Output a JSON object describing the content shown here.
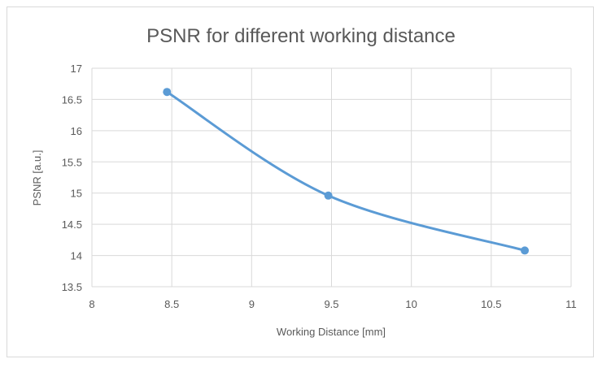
{
  "chart_data": {
    "type": "line",
    "title": "PSNR for different working distance",
    "xlabel": "Working Distance [mm]",
    "ylabel": "PSNR [a.u.]",
    "xlim": [
      8,
      11
    ],
    "ylim": [
      13.5,
      17
    ],
    "x_ticks": [
      "8",
      "8.5",
      "9",
      "9.5",
      "10",
      "10.5",
      "11"
    ],
    "y_ticks": [
      "13.5",
      "14",
      "14.5",
      "15",
      "15.5",
      "16",
      "16.5",
      "17"
    ],
    "grid": true,
    "smooth": true,
    "series": [
      {
        "color": "#5b9bd5",
        "x": [
          8.47,
          9.48,
          10.71
        ],
        "y": [
          16.62,
          14.96,
          14.08
        ]
      }
    ]
  }
}
